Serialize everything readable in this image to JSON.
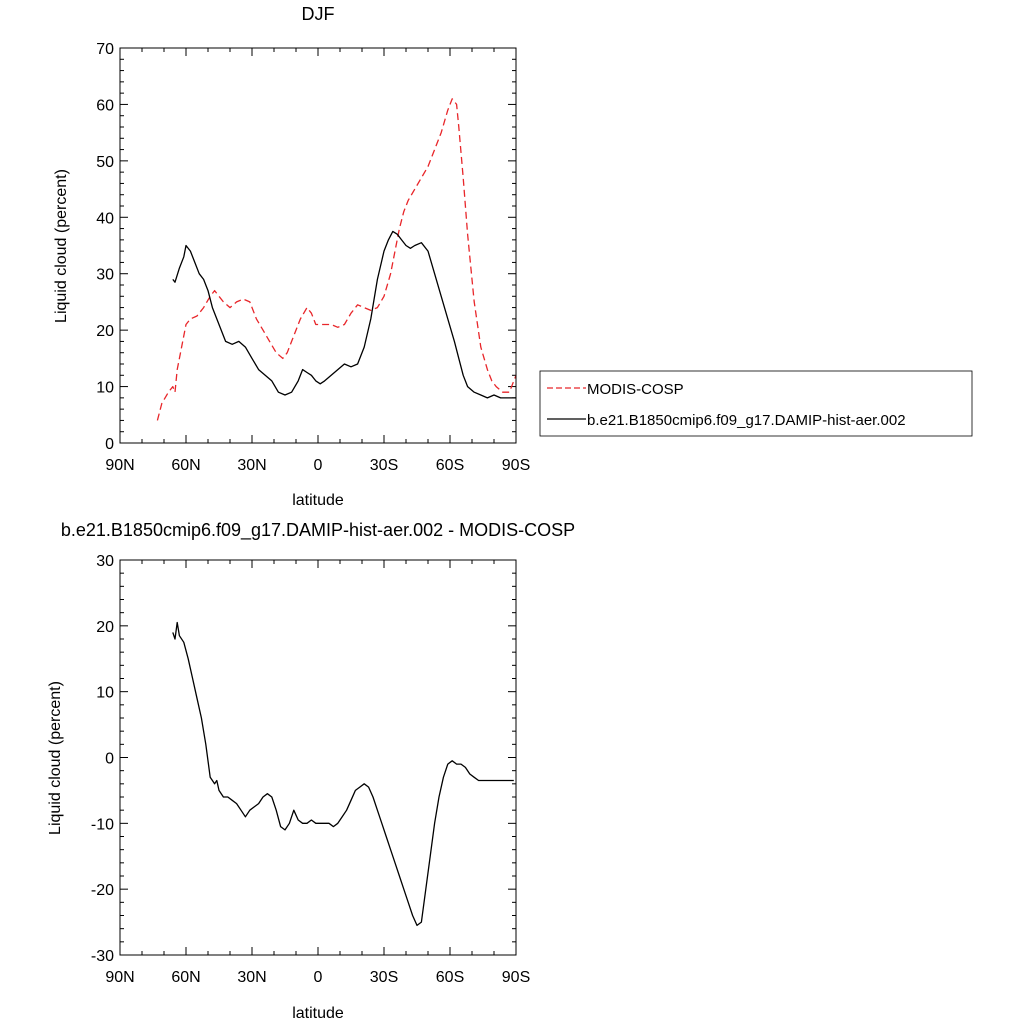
{
  "chart_data": [
    {
      "type": "line",
      "title": "DJF",
      "xlabel": "latitude",
      "ylabel": "Liquid cloud (percent)",
      "xlim": [
        90,
        -90
      ],
      "ylim": [
        0,
        70
      ],
      "x_ticks": [
        90,
        60,
        30,
        0,
        -30,
        -60,
        -90
      ],
      "x_tick_labels": [
        "90N",
        "60N",
        "30N",
        "0",
        "30S",
        "60S",
        "90S"
      ],
      "y_ticks": [
        0,
        10,
        20,
        30,
        40,
        50,
        60,
        70
      ],
      "y_tick_labels": [
        "0",
        "10",
        "20",
        "30",
        "40",
        "50",
        "60",
        "70"
      ],
      "legend": "outside-right",
      "grid": false,
      "series": [
        {
          "name": "MODIS-COSP",
          "color": "#e8262a",
          "style": "dashed",
          "x": [
            73,
            71,
            68,
            66,
            65,
            64,
            62,
            60,
            58,
            55,
            52,
            49,
            47,
            45,
            43,
            40,
            37,
            34,
            31,
            28,
            25,
            22,
            19,
            16,
            14,
            12,
            10,
            8,
            5,
            3,
            1,
            -1,
            -3,
            -6,
            -9,
            -12,
            -15,
            -18,
            -21,
            -24,
            -27,
            -30,
            -33,
            -35,
            -37,
            -39,
            -41,
            -44,
            -47,
            -50,
            -53,
            -56,
            -59,
            -61,
            -63,
            -64,
            -66,
            -68,
            -71,
            -74,
            -77,
            -79,
            -81,
            -84,
            -87,
            -90
          ],
          "values": [
            4,
            7,
            9,
            10,
            9,
            13,
            17,
            21,
            22,
            22.5,
            24,
            26,
            27,
            26,
            25,
            24,
            25,
            25.5,
            25,
            22,
            20,
            18,
            16,
            15,
            16,
            18,
            20,
            22,
            24,
            23,
            21,
            21,
            21,
            21,
            20.5,
            21,
            23,
            24.5,
            24,
            23.5,
            24,
            26,
            30,
            34,
            38,
            41,
            43,
            45,
            47,
            49,
            52,
            55,
            59,
            61,
            60,
            56,
            47,
            37,
            25,
            17,
            13,
            11,
            10,
            9,
            9,
            12
          ]
        },
        {
          "name": "b.e21.B1850cmip6.f09_g17.DAMIP-hist-aer.002",
          "color": "#000000",
          "style": "solid",
          "x": [
            66,
            65,
            63,
            61,
            60,
            58,
            56,
            54,
            52,
            50,
            48,
            46,
            44,
            42,
            39,
            36,
            33,
            30,
            27,
            24,
            21,
            18,
            15,
            12,
            9,
            7,
            5,
            3,
            1,
            -1,
            -3,
            -6,
            -9,
            -12,
            -15,
            -18,
            -21,
            -24,
            -27,
            -30,
            -32,
            -34,
            -36,
            -38,
            -40,
            -42,
            -44,
            -47,
            -50,
            -53,
            -56,
            -59,
            -62,
            -64,
            -66,
            -68,
            -71,
            -74,
            -77,
            -80,
            -83,
            -86,
            -88,
            -90
          ],
          "values": [
            29,
            28.5,
            31,
            33,
            35,
            34,
            32,
            30,
            29,
            27,
            24,
            22,
            20,
            18,
            17.5,
            18,
            17,
            15,
            13,
            12,
            11,
            9,
            8.5,
            9,
            11,
            13,
            12.5,
            12,
            11,
            10.5,
            11,
            12,
            13,
            14,
            13.5,
            14,
            17,
            22,
            29,
            34,
            36,
            37.5,
            37,
            36,
            35,
            34.5,
            35,
            35.5,
            34,
            30,
            26,
            22,
            18,
            15,
            12,
            10,
            9,
            8.5,
            8,
            8.5,
            8,
            8,
            8,
            8
          ]
        }
      ]
    },
    {
      "type": "line",
      "title": "b.e21.B1850cmip6.f09_g17.DAMIP-hist-aer.002 - MODIS-COSP",
      "xlabel": "latitude",
      "ylabel": "Liquid cloud (percent)",
      "xlim": [
        90,
        -90
      ],
      "ylim": [
        -30,
        30
      ],
      "x_ticks": [
        90,
        60,
        30,
        0,
        -30,
        -60,
        -90
      ],
      "x_tick_labels": [
        "90N",
        "60N",
        "30N",
        "0",
        "30S",
        "60S",
        "90S"
      ],
      "y_ticks": [
        -30,
        -20,
        -10,
        0,
        10,
        20,
        30
      ],
      "y_tick_labels": [
        "-30",
        "-20",
        "-10",
        "0",
        "10",
        "20",
        "30"
      ],
      "grid": false,
      "series": [
        {
          "color": "#000000",
          "style": "solid",
          "x": [
            66,
            65,
            64,
            63,
            61,
            59,
            57,
            55,
            53,
            51,
            49,
            47,
            46,
            45,
            43,
            41,
            39,
            37,
            35,
            33,
            31,
            29,
            27,
            25,
            23,
            21,
            19,
            17,
            15,
            13,
            11,
            9,
            7,
            5,
            3,
            1,
            -1,
            -3,
            -5,
            -7,
            -9,
            -11,
            -13,
            -15,
            -17,
            -19,
            -21,
            -23,
            -25,
            -27,
            -29,
            -31,
            -33,
            -35,
            -37,
            -39,
            -41,
            -43,
            -45,
            -47,
            -49,
            -51,
            -53,
            -55,
            -57,
            -59,
            -61,
            -63,
            -65,
            -67,
            -69,
            -71,
            -73,
            -75,
            -77,
            -79,
            -81,
            -83,
            -85,
            -87,
            -89
          ],
          "values": [
            19,
            18,
            20.5,
            18.5,
            17.5,
            15,
            12,
            9,
            6,
            2,
            -3,
            -4,
            -3.5,
            -5,
            -6,
            -6,
            -6.5,
            -7,
            -8,
            -9,
            -8,
            -7.5,
            -7,
            -6,
            -5.5,
            -6,
            -8,
            -10.5,
            -11,
            -10,
            -8,
            -9.5,
            -10,
            -10,
            -9.5,
            -10,
            -10,
            -10,
            -10,
            -10.5,
            -10,
            -9,
            -8,
            -6.5,
            -5,
            -4.5,
            -4,
            -4.5,
            -6,
            -8,
            -10,
            -12,
            -14,
            -16,
            -18,
            -20,
            -22,
            -24,
            -25.5,
            -25,
            -20,
            -15,
            -10,
            -6,
            -3,
            -1,
            -0.5,
            -1,
            -1,
            -1.5,
            -2.5,
            -3,
            -3.5,
            -3.5,
            -3.5,
            -3.5,
            -3.5,
            -3.5,
            -3.5,
            -3.5,
            -3.5
          ],
          "name": ""
        }
      ]
    }
  ]
}
